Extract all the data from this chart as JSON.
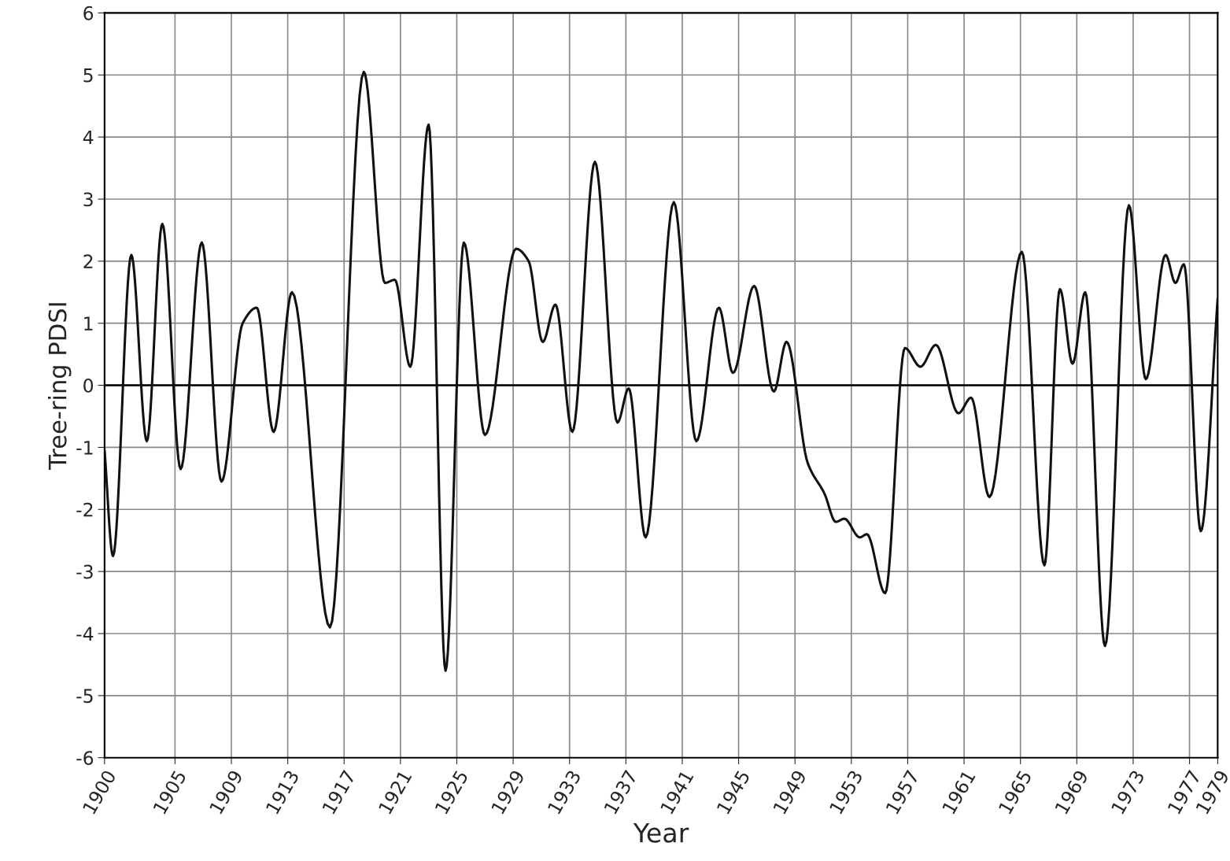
{
  "chart_data": {
    "type": "line",
    "xlabel": "Year",
    "ylabel": "Tree-ring PDSI",
    "xlim": [
      1900,
      1979
    ],
    "xticks": [
      1900,
      1905,
      1909,
      1913,
      1917,
      1921,
      1925,
      1929,
      1933,
      1937,
      1941,
      1945,
      1949,
      1953,
      1957,
      1961,
      1965,
      1969,
      1973,
      1977,
      1979
    ],
    "ylim": [
      -6,
      6
    ],
    "yticks": [
      -6,
      -5,
      -4,
      -3,
      -2,
      -1,
      0,
      1,
      2,
      3,
      4,
      5,
      6
    ],
    "grid": true,
    "marker": "none",
    "line_style": "solid",
    "ref_lines": [
      {
        "axis": "y",
        "value": 0,
        "color": "#000000"
      }
    ],
    "series": [
      {
        "color": "#111111",
        "x": [
          1900.0,
          1900.6,
          1901.9,
          1903.0,
          1904.1,
          1905.4,
          1906.9,
          1908.3,
          1909.8,
          1910.8,
          1912.0,
          1913.3,
          1916.0,
          1918.4,
          1919.9,
          1920.6,
          1921.7,
          1923.0,
          1924.2,
          1925.5,
          1927.0,
          1929.2,
          1930.1,
          1931.1,
          1932.0,
          1933.2,
          1934.8,
          1936.4,
          1937.2,
          1938.4,
          1940.4,
          1942.0,
          1943.6,
          1944.6,
          1946.1,
          1947.5,
          1948.4,
          1949.9,
          1951.1,
          1951.9,
          1952.5,
          1953.6,
          1954.1,
          1955.4,
          1956.8,
          1957.9,
          1959.0,
          1960.6,
          1961.5,
          1962.8,
          1965.1,
          1966.7,
          1967.8,
          1968.7,
          1969.6,
          1971.0,
          1972.7,
          1973.9,
          1975.3,
          1976.0,
          1976.6,
          1977.8,
          1979.0
        ],
        "values": [
          -1.05,
          -2.75,
          2.1,
          -0.9,
          2.6,
          -1.35,
          2.3,
          -1.55,
          1.0,
          1.25,
          -0.75,
          1.5,
          -3.9,
          5.05,
          1.65,
          1.7,
          0.3,
          4.2,
          -4.6,
          2.3,
          -0.8,
          2.2,
          2.0,
          0.7,
          1.3,
          -0.75,
          3.6,
          -0.6,
          -0.05,
          -2.45,
          2.95,
          -0.9,
          1.25,
          0.2,
          1.6,
          -0.1,
          0.7,
          -1.25,
          -1.75,
          -2.2,
          -2.15,
          -2.45,
          -2.4,
          -3.35,
          0.6,
          0.3,
          0.65,
          -0.45,
          -0.2,
          -1.8,
          2.15,
          -2.9,
          1.55,
          0.35,
          1.5,
          -4.2,
          2.9,
          0.1,
          2.1,
          1.65,
          1.95,
          -2.35,
          1.4
        ]
      }
    ]
  }
}
